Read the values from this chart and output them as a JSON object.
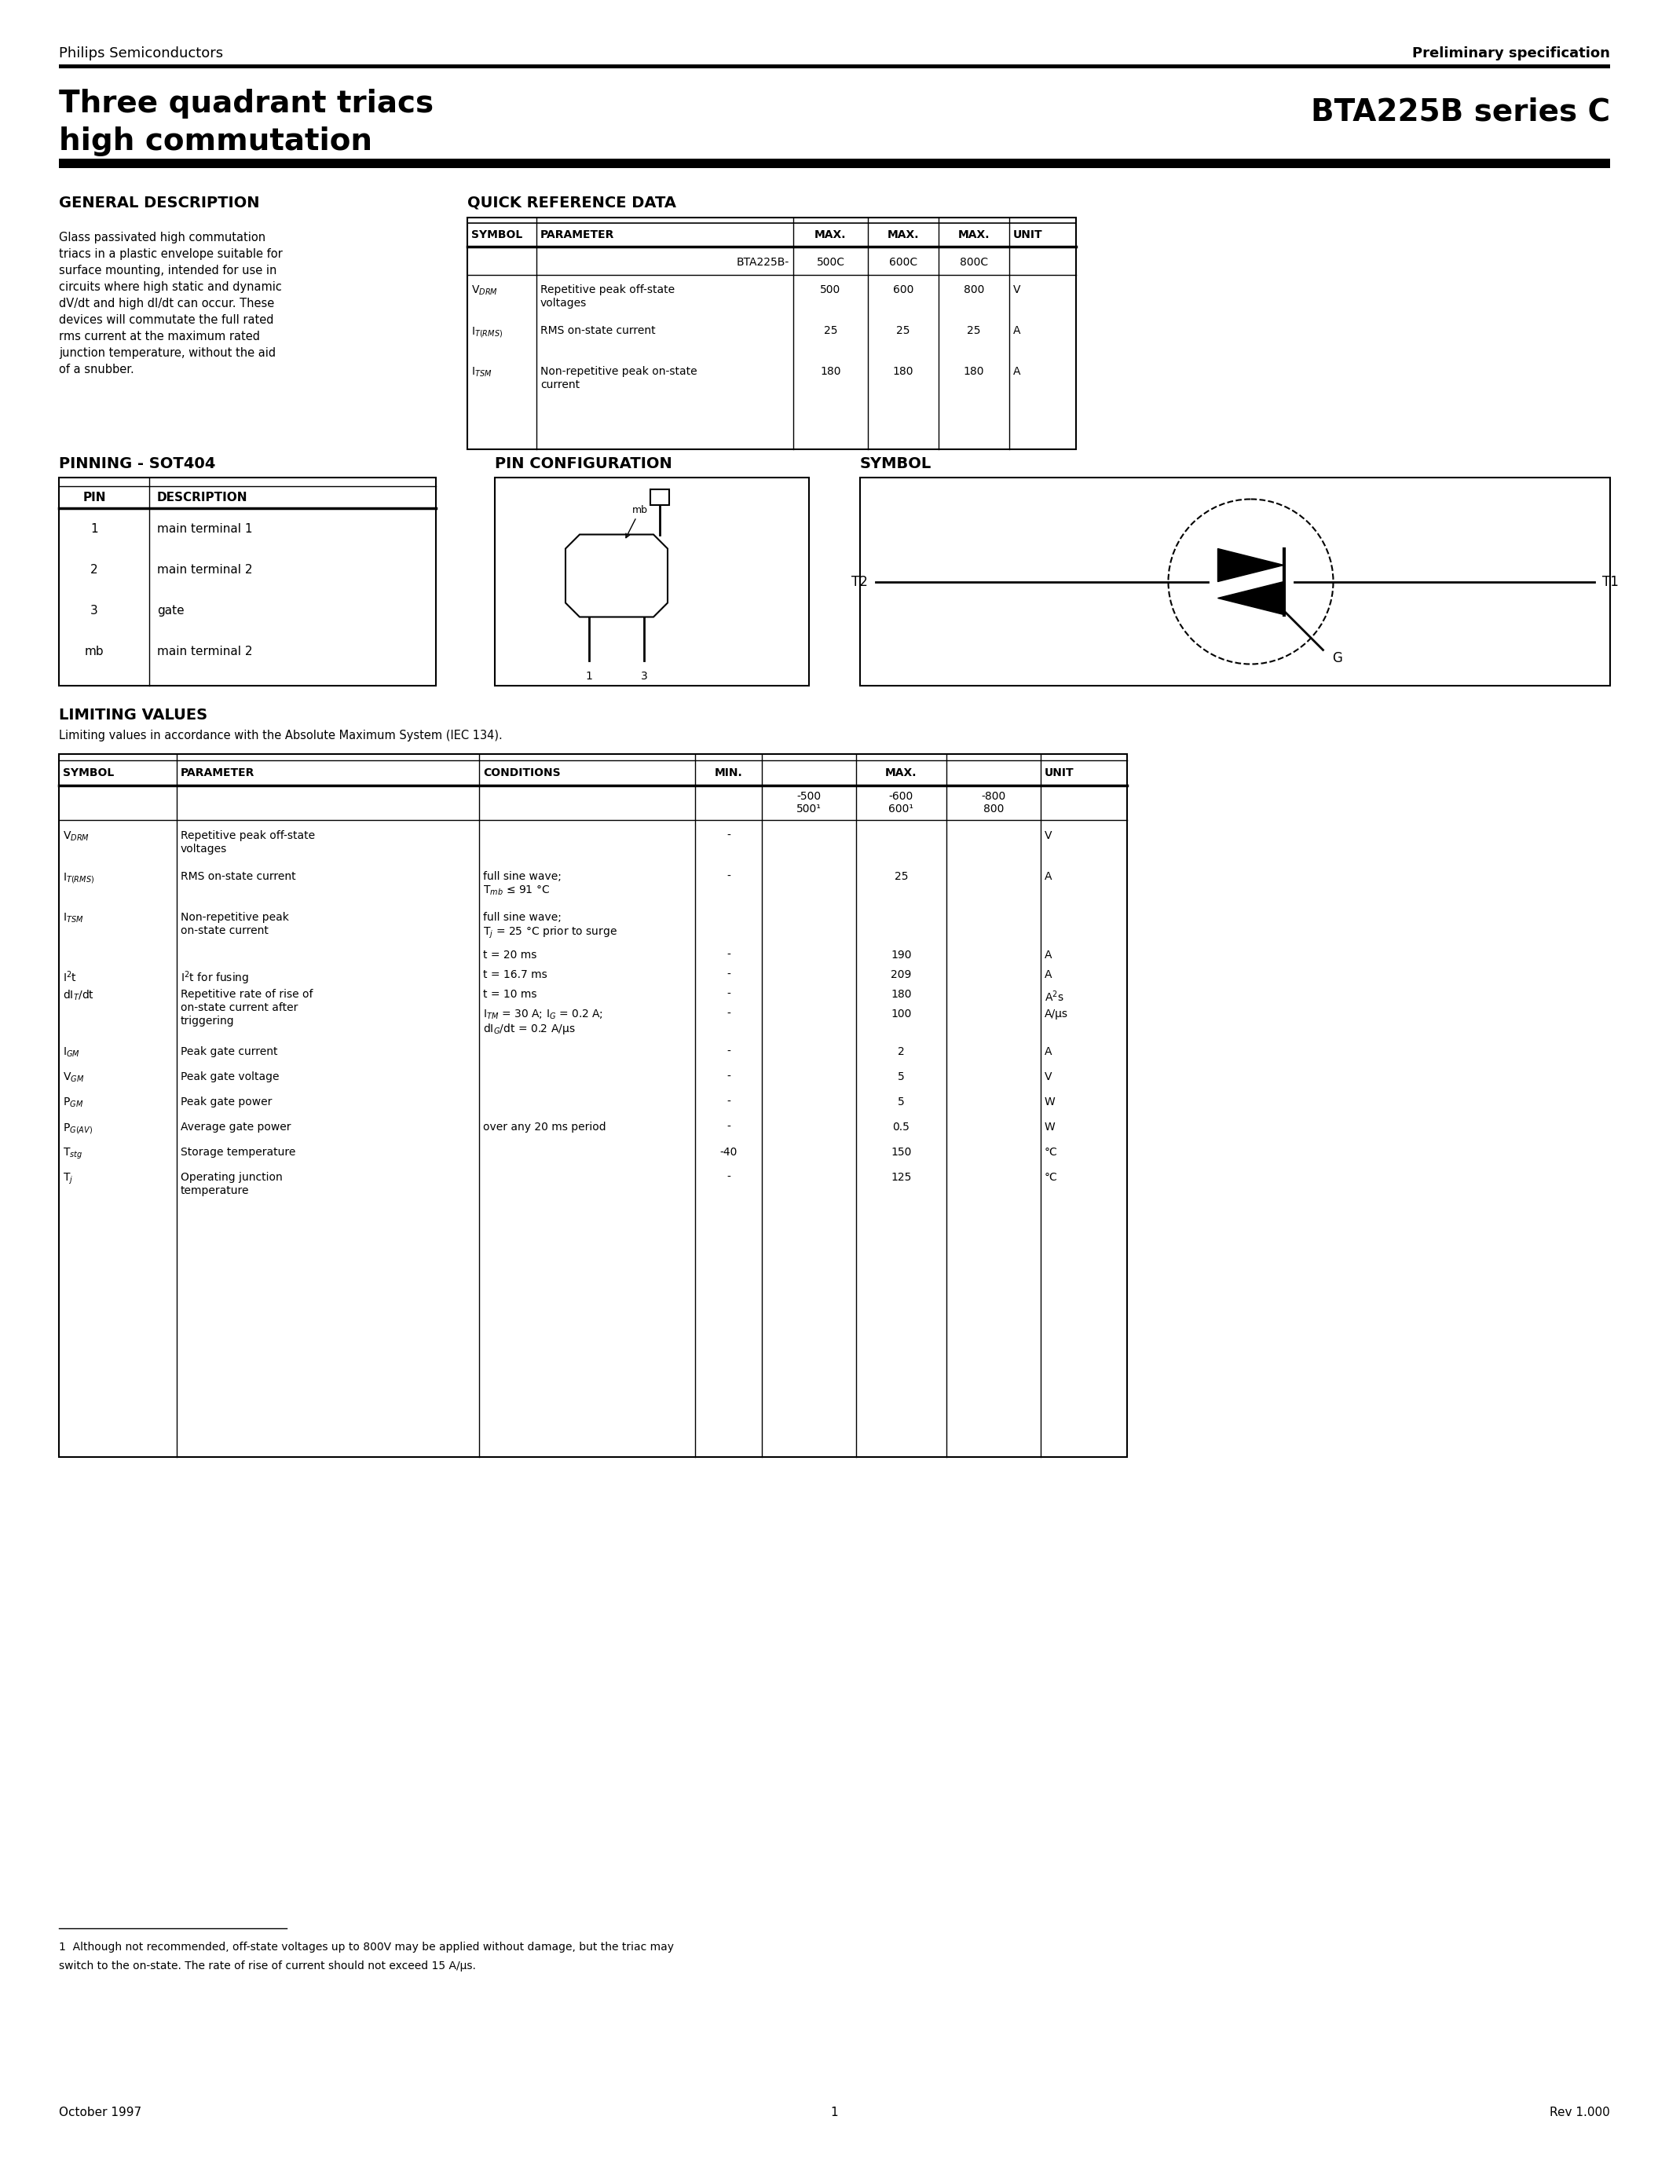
{
  "page_width": 21.25,
  "page_height": 27.5,
  "bg_color": "#ffffff",
  "text_color": "#000000",
  "header_left": "Philips Semiconductors",
  "header_right": "Preliminary specification",
  "title_left1": "Three quadrant triacs",
  "title_left2": "high commutation",
  "title_right": "BTA225B series C",
  "section1_title": "GENERAL DESCRIPTION",
  "section2_title": "QUICK REFERENCE DATA",
  "desc_lines": [
    "Glass passivated high commutation",
    "triacs in a plastic envelope suitable for",
    "surface mounting, intended for use in",
    "circuits where high static and dynamic",
    "dV/dt and high dI/dt can occur. These",
    "devices will commutate the full rated",
    "rms current at the maximum rated",
    "junction temperature, without the aid",
    "of a snubber."
  ],
  "pinning_title": "PINNING - SOT404",
  "pin_config_title": "PIN CONFIGURATION",
  "symbol_title": "SYMBOL",
  "pin_rows": [
    [
      "1",
      "main terminal 1"
    ],
    [
      "2",
      "main terminal 2"
    ],
    [
      "3",
      "gate"
    ],
    [
      "mb",
      "main terminal 2"
    ]
  ],
  "lv_title": "LIMITING VALUES",
  "lv_subtitle": "Limiting values in accordance with the Absolute Maximum System (IEC 134).",
  "footer_left": "October 1997",
  "footer_center": "1",
  "footer_right": "Rev 1.000",
  "footnote_line1": "1  Although not recommended, off-state voltages up to 800V may be applied without damage, but the triac may",
  "footnote_line2": "switch to the on-state. The rate of rise of current should not exceed 15 A/μs."
}
